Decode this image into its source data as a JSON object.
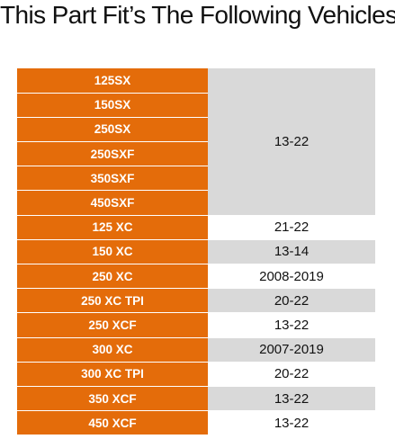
{
  "title": "This Part Fit’s The Following Vehicles",
  "colors": {
    "model_cell": "#e46c0a",
    "shaded_cell": "#d9d9d9",
    "plain_cell": "#ffffff"
  },
  "rows": [
    {
      "model": "125SX",
      "years": "13-22",
      "span": 6,
      "shaded": true
    },
    {
      "model": "150SX"
    },
    {
      "model": "250SX"
    },
    {
      "model": "250SXF"
    },
    {
      "model": "350SXF"
    },
    {
      "model": "450SXF"
    },
    {
      "model": "125 XC",
      "years": "21-22",
      "span": 1,
      "shaded": false
    },
    {
      "model": "150 XC",
      "years": "13-14",
      "span": 1,
      "shaded": true
    },
    {
      "model": "250 XC",
      "years": "2008-2019",
      "span": 1,
      "shaded": false
    },
    {
      "model": "250 XC TPI",
      "years": "20-22",
      "span": 1,
      "shaded": true
    },
    {
      "model": "250 XCF",
      "years": "13-22",
      "span": 1,
      "shaded": false
    },
    {
      "model": "300 XC",
      "years": "2007-2019",
      "span": 1,
      "shaded": true
    },
    {
      "model": "300 XC TPI",
      "years": "20-22",
      "span": 1,
      "shaded": false
    },
    {
      "model": "350 XCF",
      "years": "13-22",
      "span": 1,
      "shaded": true
    },
    {
      "model": "450 XCF",
      "years": "13-22",
      "span": 1,
      "shaded": false
    }
  ]
}
